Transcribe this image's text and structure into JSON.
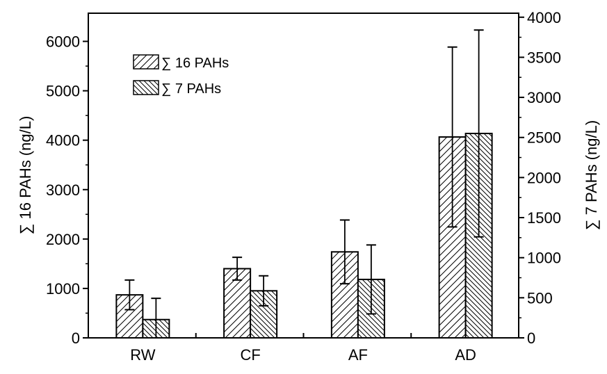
{
  "chart_data": {
    "type": "bar",
    "title": "",
    "categories": [
      "RW",
      "CF",
      "AF",
      "AD"
    ],
    "ylabel": "∑ 16 PAHs (ng/L)",
    "y2label": "∑ 7 PAHs (ng/L)",
    "ylim": [
      0,
      6570
    ],
    "y2lim": [
      0,
      4050
    ],
    "yticks": [
      0,
      1000,
      2000,
      3000,
      4000,
      5000,
      6000
    ],
    "y2ticks": [
      0,
      500,
      1000,
      1500,
      2000,
      2500,
      3000,
      3500,
      4000
    ],
    "legend_position": "top-left",
    "series": [
      {
        "name": "∑ 16 PAHs",
        "axis": "left",
        "pattern": "forward-hatch",
        "values": [
          870,
          1400,
          1740,
          4065
        ],
        "errors": [
          300,
          230,
          645,
          1820
        ]
      },
      {
        "name": "∑ 7 PAHs",
        "axis": "right",
        "pattern": "back-hatch",
        "values": [
          228,
          587,
          729,
          2550
        ],
        "errors": [
          265,
          187,
          430,
          1290
        ]
      }
    ],
    "grid": false
  }
}
